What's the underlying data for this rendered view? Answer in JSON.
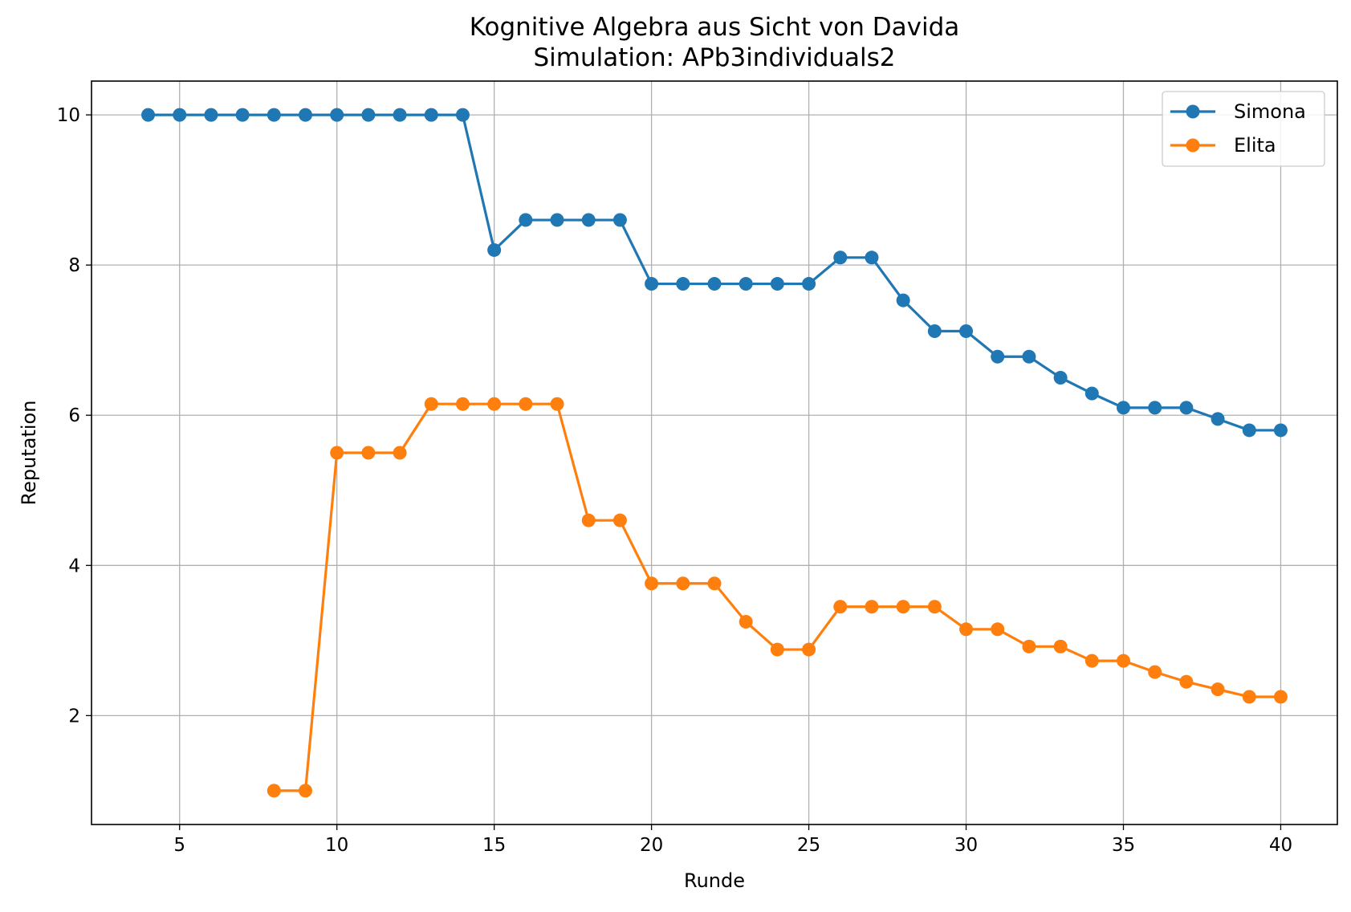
{
  "chart_data": {
    "type": "line",
    "title": "Kognitive Algebra aus Sicht von Davida",
    "subtitle": "Simulation: APb3individuals2",
    "xlabel": "Runde",
    "ylabel": "Reputation",
    "xlim": [
      2.2,
      41.8
    ],
    "ylim": [
      0.55,
      10.45
    ],
    "xticks": [
      5,
      10,
      15,
      20,
      25,
      30,
      35,
      40
    ],
    "yticks": [
      2,
      4,
      6,
      8,
      10
    ],
    "grid": true,
    "legend_position": "top-right",
    "series": [
      {
        "name": "Simona",
        "color": "#1f77b4",
        "marker": "circle",
        "x": [
          4,
          5,
          6,
          7,
          8,
          9,
          10,
          11,
          12,
          13,
          14,
          15,
          16,
          17,
          18,
          19,
          20,
          21,
          22,
          23,
          24,
          25,
          26,
          27,
          28,
          29,
          30,
          31,
          32,
          33,
          34,
          35,
          36,
          37,
          38,
          39,
          40
        ],
        "y": [
          10,
          10,
          10,
          10,
          10,
          10,
          10,
          10,
          10,
          10,
          10,
          8.2,
          8.6,
          8.6,
          8.6,
          8.6,
          7.75,
          7.75,
          7.75,
          7.75,
          7.75,
          7.75,
          8.1,
          8.1,
          7.53,
          7.12,
          7.12,
          6.78,
          6.78,
          6.5,
          6.29,
          6.1,
          6.1,
          6.1,
          5.95,
          5.8,
          5.8
        ]
      },
      {
        "name": "Elita",
        "color": "#ff7f0e",
        "marker": "circle",
        "x": [
          8,
          9,
          10,
          11,
          12,
          13,
          14,
          15,
          16,
          17,
          18,
          19,
          20,
          21,
          22,
          23,
          24,
          25,
          26,
          27,
          28,
          29,
          30,
          31,
          32,
          33,
          34,
          35,
          36,
          37,
          38,
          39,
          40
        ],
        "y": [
          1.0,
          1.0,
          5.5,
          5.5,
          5.5,
          6.15,
          6.15,
          6.15,
          6.15,
          6.15,
          4.6,
          4.6,
          3.76,
          3.76,
          3.76,
          3.25,
          2.88,
          2.88,
          3.45,
          3.45,
          3.45,
          3.45,
          3.15,
          3.15,
          2.92,
          2.92,
          2.73,
          2.73,
          2.58,
          2.45,
          2.35,
          2.25,
          2.25
        ]
      }
    ]
  }
}
